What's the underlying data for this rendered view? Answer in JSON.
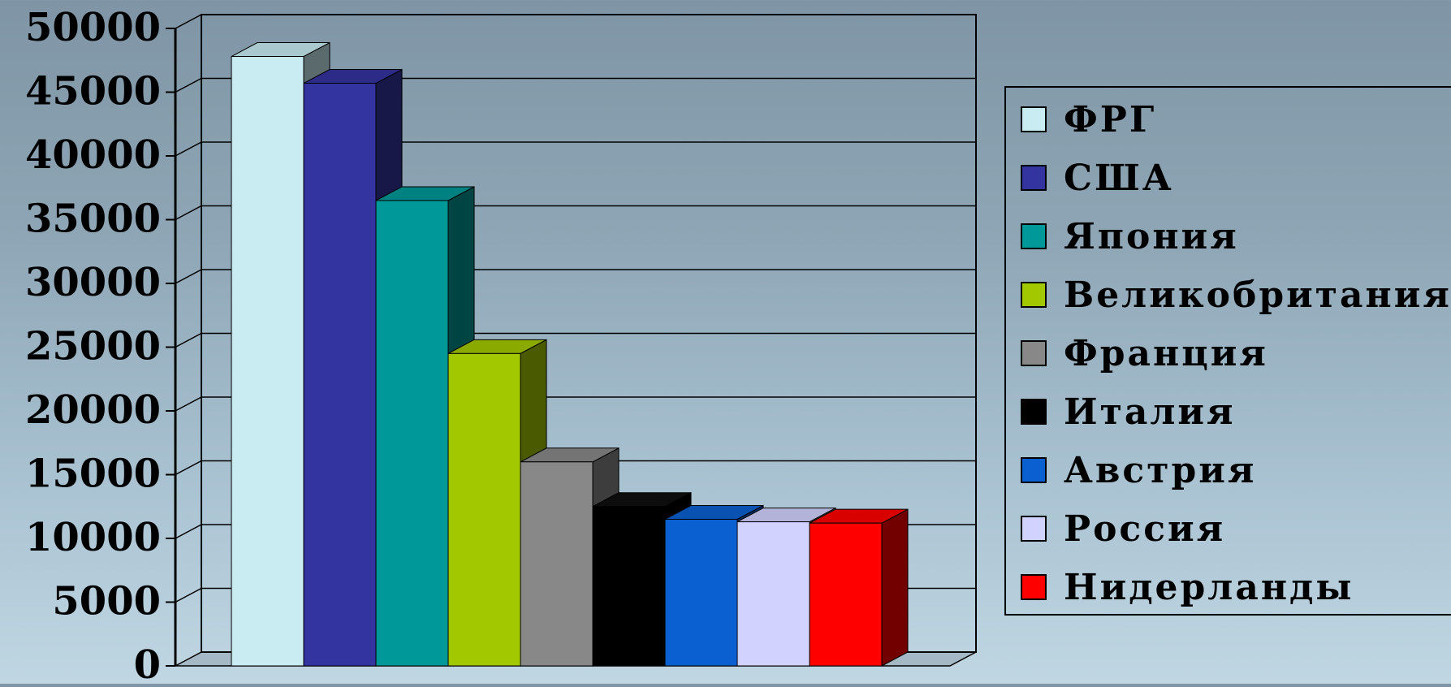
{
  "chart_data": {
    "type": "bar",
    "categories": [
      "ФРГ",
      "США",
      "Япония",
      "Великобритания",
      "Франция",
      "Италия",
      "Австрия",
      "Россия",
      "Нидерланды"
    ],
    "values": [
      47800,
      45700,
      36500,
      24500,
      16000,
      12500,
      11500,
      11300,
      11200
    ],
    "colors": [
      "#c8ecf2",
      "#3434a0",
      "#009898",
      "#a2c800",
      "#888888",
      "#000000",
      "#0a60d0",
      "#d2d2ff",
      "#ff0000"
    ],
    "ylim": [
      0,
      50000
    ],
    "yticks": [
      "0",
      "5000",
      "10000",
      "15000",
      "20000",
      "25000",
      "30000",
      "35000",
      "40000",
      "45000",
      "50000"
    ],
    "grid": true,
    "legend_position": "right",
    "style": "3d-column"
  }
}
